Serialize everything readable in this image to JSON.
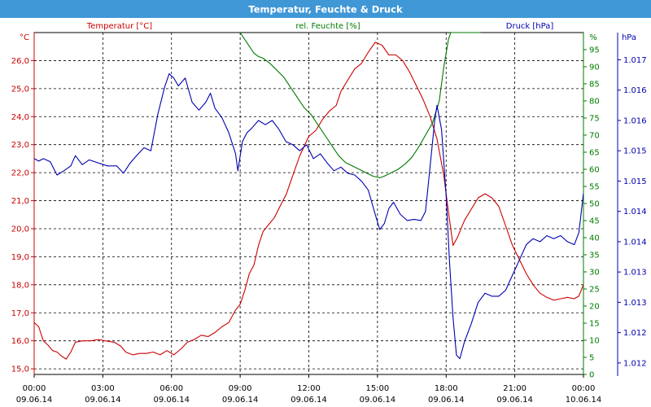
{
  "window": {
    "title": "Temperatur, Feuchte & Druck"
  },
  "colors": {
    "temperature": "#cc0000",
    "humidity": "#007a00",
    "pressure": "#0000b0",
    "grid": "#000000",
    "titlebar": "#3f97d6"
  },
  "chart_data": {
    "type": "line",
    "title": "Temperatur, Feuchte & Druck",
    "grid": true,
    "x_axis": {
      "ticks": [
        {
          "t": 0,
          "time": "00:00",
          "date": "09.06.14"
        },
        {
          "t": 3,
          "time": "03:00",
          "date": "09.06.14"
        },
        {
          "t": 6,
          "time": "06:00",
          "date": "09.06.14"
        },
        {
          "t": 9,
          "time": "09:00",
          "date": "09.06.14"
        },
        {
          "t": 12,
          "time": "12:00",
          "date": "09.06.14"
        },
        {
          "t": 15,
          "time": "15:00",
          "date": "09.06.14"
        },
        {
          "t": 18,
          "time": "18:00",
          "date": "09.06.14"
        },
        {
          "t": 21,
          "time": "21:00",
          "date": "09.06.14"
        },
        {
          "t": 24,
          "time": "00:00",
          "date": "10.06.14"
        }
      ],
      "range": [
        0,
        24
      ]
    },
    "y_axes": {
      "temperature": {
        "label": "Temperatur [°C]",
        "unit": "°C",
        "range": [
          14.8,
          27.0
        ],
        "ticks": [
          {
            "v": 15.0,
            "label": "15,0"
          },
          {
            "v": 16.0,
            "label": "16,0"
          },
          {
            "v": 17.0,
            "label": "17,0"
          },
          {
            "v": 18.0,
            "label": "18,0"
          },
          {
            "v": 19.0,
            "label": "19,0"
          },
          {
            "v": 20.0,
            "label": "20,0"
          },
          {
            "v": 21.0,
            "label": "21,0"
          },
          {
            "v": 22.0,
            "label": "22,0"
          },
          {
            "v": 23.0,
            "label": "23,0"
          },
          {
            "v": 24.0,
            "label": "24,0"
          },
          {
            "v": 25.0,
            "label": "25,0"
          },
          {
            "v": 26.0,
            "label": "26,0"
          }
        ]
      },
      "humidity": {
        "label": "rel. Feuchte [%]",
        "unit": "%",
        "range": [
          0,
          100
        ],
        "ticks": [
          {
            "v": 0,
            "label": "0"
          },
          {
            "v": 5,
            "label": "5"
          },
          {
            "v": 10,
            "label": "10"
          },
          {
            "v": 15,
            "label": "15"
          },
          {
            "v": 20,
            "label": "20"
          },
          {
            "v": 25,
            "label": "25"
          },
          {
            "v": 30,
            "label": "30"
          },
          {
            "v": 35,
            "label": "35"
          },
          {
            "v": 40,
            "label": "40"
          },
          {
            "v": 45,
            "label": "45"
          },
          {
            "v": 50,
            "label": "50"
          },
          {
            "v": 55,
            "label": "55"
          },
          {
            "v": 60,
            "label": "60"
          },
          {
            "v": 65,
            "label": "65"
          },
          {
            "v": 70,
            "label": "70"
          },
          {
            "v": 75,
            "label": "75"
          },
          {
            "v": 80,
            "label": "80"
          },
          {
            "v": 85,
            "label": "85"
          },
          {
            "v": 90,
            "label": "90"
          },
          {
            "v": 95,
            "label": "95"
          }
        ]
      },
      "pressure": {
        "label": "Druck [hPa]",
        "unit": "hPa",
        "range": [
          1011.66,
          1017.3
        ],
        "ticks": [
          {
            "v": 1011.85,
            "label": "1.012"
          },
          {
            "v": 1012.35,
            "label": "1.012"
          },
          {
            "v": 1012.85,
            "label": "1.013"
          },
          {
            "v": 1013.35,
            "label": "1.013"
          },
          {
            "v": 1013.85,
            "label": "1.014"
          },
          {
            "v": 1014.35,
            "label": "1.014"
          },
          {
            "v": 1014.85,
            "label": "1.015"
          },
          {
            "v": 1015.35,
            "label": "1.015"
          },
          {
            "v": 1015.85,
            "label": "1.016"
          },
          {
            "v": 1016.35,
            "label": "1.016"
          },
          {
            "v": 1016.85,
            "label": "1.017"
          }
        ]
      }
    },
    "series": [
      {
        "name": "Temperatur [°C]",
        "axis": "temperature",
        "points": [
          [
            0,
            16.65
          ],
          [
            0.2,
            16.5
          ],
          [
            0.4,
            16.0
          ],
          [
            0.6,
            15.85
          ],
          [
            0.8,
            15.65
          ],
          [
            1.0,
            15.6
          ],
          [
            1.2,
            15.45
          ],
          [
            1.4,
            15.35
          ],
          [
            1.6,
            15.6
          ],
          [
            1.8,
            15.95
          ],
          [
            2.1,
            16.0
          ],
          [
            2.5,
            16.0
          ],
          [
            2.8,
            16.05
          ],
          [
            3.1,
            16.0
          ],
          [
            3.5,
            15.95
          ],
          [
            3.8,
            15.8
          ],
          [
            4.0,
            15.6
          ],
          [
            4.3,
            15.5
          ],
          [
            4.6,
            15.55
          ],
          [
            4.9,
            15.55
          ],
          [
            5.2,
            15.6
          ],
          [
            5.5,
            15.5
          ],
          [
            5.8,
            15.65
          ],
          [
            6.1,
            15.5
          ],
          [
            6.4,
            15.7
          ],
          [
            6.7,
            15.95
          ],
          [
            7.0,
            16.05
          ],
          [
            7.3,
            16.2
          ],
          [
            7.6,
            16.15
          ],
          [
            7.9,
            16.3
          ],
          [
            8.2,
            16.5
          ],
          [
            8.5,
            16.65
          ],
          [
            8.8,
            17.1
          ],
          [
            9.0,
            17.3
          ],
          [
            9.2,
            17.8
          ],
          [
            9.4,
            18.4
          ],
          [
            9.6,
            18.7
          ],
          [
            9.8,
            19.4
          ],
          [
            10.0,
            19.9
          ],
          [
            10.2,
            20.1
          ],
          [
            10.5,
            20.4
          ],
          [
            10.8,
            20.9
          ],
          [
            11.0,
            21.2
          ],
          [
            11.3,
            21.9
          ],
          [
            11.6,
            22.6
          ],
          [
            12.0,
            23.3
          ],
          [
            12.3,
            23.5
          ],
          [
            12.6,
            23.9
          ],
          [
            12.9,
            24.2
          ],
          [
            13.2,
            24.4
          ],
          [
            13.4,
            24.9
          ],
          [
            13.7,
            25.3
          ],
          [
            14.0,
            25.7
          ],
          [
            14.3,
            25.9
          ],
          [
            14.6,
            26.3
          ],
          [
            14.9,
            26.65
          ],
          [
            15.2,
            26.55
          ],
          [
            15.5,
            26.2
          ],
          [
            15.8,
            26.2
          ],
          [
            16.1,
            26.0
          ],
          [
            16.4,
            25.6
          ],
          [
            16.7,
            25.1
          ],
          [
            17.0,
            24.6
          ],
          [
            17.3,
            24.0
          ],
          [
            17.6,
            23.2
          ],
          [
            17.9,
            21.9
          ],
          [
            18.1,
            20.6
          ],
          [
            18.3,
            19.4
          ],
          [
            18.5,
            19.7
          ],
          [
            18.8,
            20.3
          ],
          [
            19.1,
            20.7
          ],
          [
            19.4,
            21.1
          ],
          [
            19.7,
            21.25
          ],
          [
            20.0,
            21.1
          ],
          [
            20.3,
            20.8
          ],
          [
            20.6,
            20.1
          ],
          [
            20.9,
            19.4
          ],
          [
            21.2,
            18.9
          ],
          [
            21.5,
            18.4
          ],
          [
            21.8,
            18.0
          ],
          [
            22.1,
            17.7
          ],
          [
            22.4,
            17.55
          ],
          [
            22.7,
            17.45
          ],
          [
            23.0,
            17.5
          ],
          [
            23.3,
            17.55
          ],
          [
            23.6,
            17.5
          ],
          [
            23.8,
            17.6
          ],
          [
            24.0,
            18.0
          ]
        ]
      },
      {
        "name": "rel. Feuchte [%]",
        "axis": "humidity",
        "points": [
          [
            9.0,
            100
          ],
          [
            9.2,
            98
          ],
          [
            9.4,
            96
          ],
          [
            9.6,
            94
          ],
          [
            9.8,
            93
          ],
          [
            10.0,
            92.5
          ],
          [
            10.3,
            91
          ],
          [
            10.6,
            89
          ],
          [
            10.9,
            87
          ],
          [
            11.2,
            84
          ],
          [
            11.5,
            81
          ],
          [
            11.8,
            78
          ],
          [
            12.1,
            76
          ],
          [
            12.4,
            73
          ],
          [
            12.7,
            70
          ],
          [
            13.0,
            67
          ],
          [
            13.3,
            64
          ],
          [
            13.6,
            62
          ],
          [
            13.9,
            61
          ],
          [
            14.2,
            60
          ],
          [
            14.5,
            59
          ],
          [
            14.8,
            58
          ],
          [
            15.1,
            57.5
          ],
          [
            15.3,
            58
          ],
          [
            15.6,
            59
          ],
          [
            15.9,
            60
          ],
          [
            16.2,
            61.5
          ],
          [
            16.5,
            63.5
          ],
          [
            16.8,
            66.5
          ],
          [
            17.1,
            70
          ],
          [
            17.4,
            73.5
          ],
          [
            17.7,
            80
          ],
          [
            17.9,
            90
          ],
          [
            18.1,
            98
          ],
          [
            18.2,
            100
          ],
          [
            18.6,
            100
          ],
          [
            19.5,
            100
          ]
        ]
      },
      {
        "name": "Druck [hPa]",
        "axis": "pressure",
        "points": [
          [
            0,
            1015.22
          ],
          [
            0.2,
            1015.18
          ],
          [
            0.4,
            1015.22
          ],
          [
            0.7,
            1015.17
          ],
          [
            1.0,
            1014.95
          ],
          [
            1.3,
            1015.02
          ],
          [
            1.6,
            1015.1
          ],
          [
            1.8,
            1015.27
          ],
          [
            2.1,
            1015.12
          ],
          [
            2.4,
            1015.2
          ],
          [
            2.8,
            1015.15
          ],
          [
            3.2,
            1015.1
          ],
          [
            3.6,
            1015.1
          ],
          [
            3.9,
            1014.98
          ],
          [
            4.2,
            1015.15
          ],
          [
            4.5,
            1015.28
          ],
          [
            4.8,
            1015.4
          ],
          [
            5.1,
            1015.35
          ],
          [
            5.4,
            1015.95
          ],
          [
            5.7,
            1016.4
          ],
          [
            5.9,
            1016.62
          ],
          [
            6.1,
            1016.55
          ],
          [
            6.3,
            1016.42
          ],
          [
            6.6,
            1016.55
          ],
          [
            6.9,
            1016.15
          ],
          [
            7.2,
            1016.02
          ],
          [
            7.5,
            1016.15
          ],
          [
            7.7,
            1016.3
          ],
          [
            7.9,
            1016.05
          ],
          [
            8.2,
            1015.9
          ],
          [
            8.5,
            1015.65
          ],
          [
            8.8,
            1015.3
          ],
          [
            8.9,
            1015.02
          ],
          [
            9.1,
            1015.5
          ],
          [
            9.3,
            1015.65
          ],
          [
            9.5,
            1015.72
          ],
          [
            9.8,
            1015.85
          ],
          [
            10.1,
            1015.78
          ],
          [
            10.4,
            1015.85
          ],
          [
            10.7,
            1015.7
          ],
          [
            11.0,
            1015.5
          ],
          [
            11.3,
            1015.45
          ],
          [
            11.6,
            1015.35
          ],
          [
            11.9,
            1015.45
          ],
          [
            12.2,
            1015.22
          ],
          [
            12.5,
            1015.3
          ],
          [
            12.8,
            1015.15
          ],
          [
            13.1,
            1015.02
          ],
          [
            13.4,
            1015.08
          ],
          [
            13.7,
            1014.98
          ],
          [
            14.0,
            1014.95
          ],
          [
            14.3,
            1014.85
          ],
          [
            14.6,
            1014.7
          ],
          [
            14.9,
            1014.3
          ],
          [
            15.1,
            1014.05
          ],
          [
            15.3,
            1014.15
          ],
          [
            15.5,
            1014.4
          ],
          [
            15.7,
            1014.5
          ],
          [
            16.0,
            1014.3
          ],
          [
            16.3,
            1014.2
          ],
          [
            16.6,
            1014.22
          ],
          [
            16.9,
            1014.2
          ],
          [
            17.1,
            1014.35
          ],
          [
            17.3,
            1015.1
          ],
          [
            17.5,
            1015.85
          ],
          [
            17.6,
            1016.1
          ],
          [
            17.8,
            1015.7
          ],
          [
            18.0,
            1014.6
          ],
          [
            18.15,
            1013.5
          ],
          [
            18.3,
            1012.6
          ],
          [
            18.45,
            1011.98
          ],
          [
            18.6,
            1011.92
          ],
          [
            18.8,
            1012.2
          ],
          [
            19.1,
            1012.5
          ],
          [
            19.4,
            1012.85
          ],
          [
            19.7,
            1013.0
          ],
          [
            20.0,
            1012.95
          ],
          [
            20.3,
            1012.95
          ],
          [
            20.6,
            1013.05
          ],
          [
            20.9,
            1013.3
          ],
          [
            21.2,
            1013.55
          ],
          [
            21.5,
            1013.8
          ],
          [
            21.8,
            1013.9
          ],
          [
            22.1,
            1013.85
          ],
          [
            22.4,
            1013.95
          ],
          [
            22.7,
            1013.9
          ],
          [
            23.0,
            1013.95
          ],
          [
            23.3,
            1013.85
          ],
          [
            23.6,
            1013.8
          ],
          [
            23.8,
            1014.0
          ],
          [
            24.0,
            1014.65
          ]
        ]
      }
    ]
  }
}
